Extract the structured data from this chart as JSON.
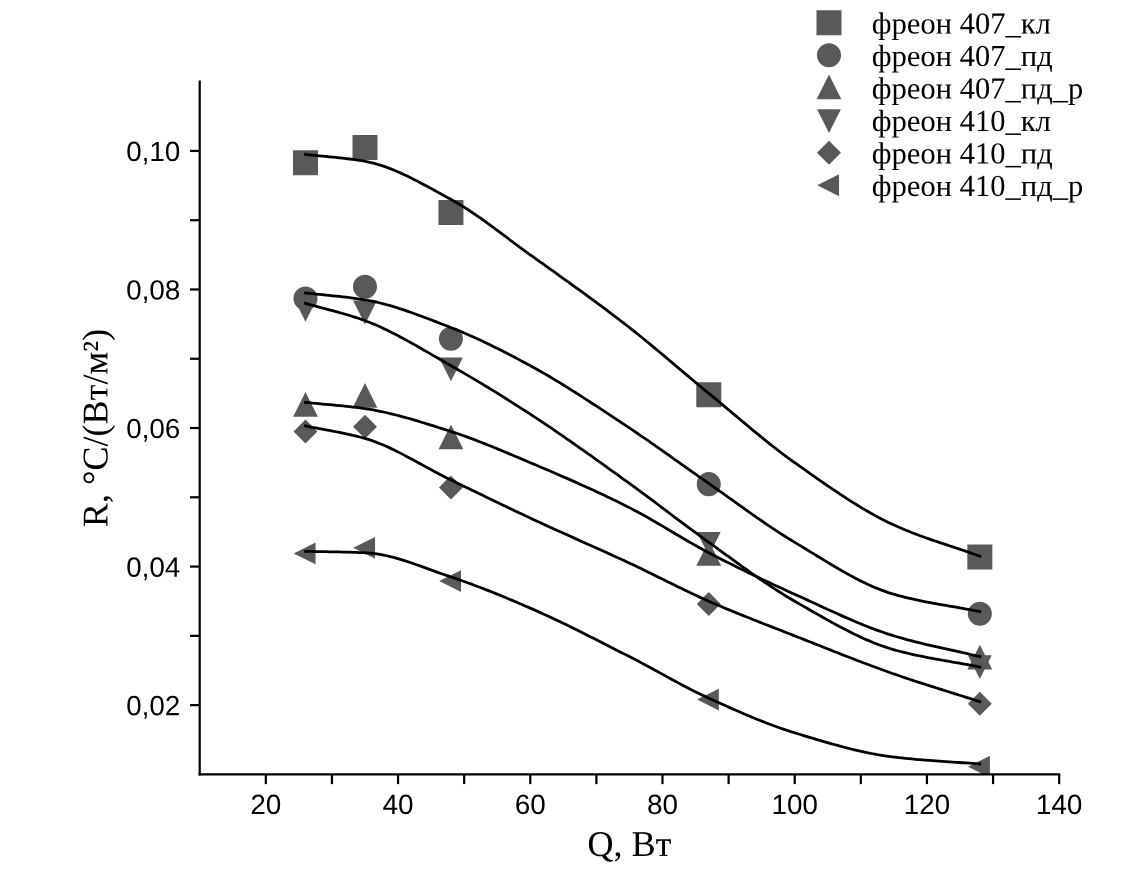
{
  "chart_data": {
    "type": "scatter",
    "xlabel": "Q, Вт",
    "ylabel": "R, °C/(Вт/м²)",
    "xlim": [
      10,
      140
    ],
    "ylim": [
      0.01,
      0.11
    ],
    "xticks": [
      20,
      40,
      60,
      80,
      100,
      120,
      140,
      {
        "value": 30,
        "label": null
      },
      {
        "value": 50,
        "label": null
      },
      {
        "value": 70,
        "label": null
      },
      {
        "value": 90,
        "label": null
      },
      {
        "value": 110,
        "label": null
      },
      {
        "value": 130,
        "label": null
      }
    ],
    "yticks": [
      {
        "value": 0.02,
        "label": "0,02"
      },
      {
        "value": 0.04,
        "label": "0,04"
      },
      {
        "value": 0.06,
        "label": "0,06"
      },
      {
        "value": 0.08,
        "label": "0,08"
      },
      {
        "value": 0.1,
        "label": "0,10"
      },
      {
        "value": 0.03,
        "label": null
      },
      {
        "value": 0.05,
        "label": null
      },
      {
        "value": 0.07,
        "label": null
      },
      {
        "value": 0.09,
        "label": null
      }
    ],
    "grid": false,
    "legend": "top right",
    "x": [
      26,
      35,
      48,
      87,
      128
    ],
    "series": [
      {
        "name": "фреон 407_кл",
        "color": "#595959",
        "marker": "square",
        "values": [
          0.0983,
          0.1005,
          0.0911,
          0.0648,
          0.0414
        ]
      },
      {
        "name": "фреон 407_пд",
        "color": "#595959",
        "marker": "circle",
        "values": [
          0.0787,
          0.0804,
          0.0729,
          0.0519,
          0.0332
        ]
      },
      {
        "name": "фреон 407_пд_р",
        "color": "#595959",
        "marker": "triangle",
        "values": [
          0.0633,
          0.0646,
          0.0586,
          0.0418,
          0.0268
        ]
      },
      {
        "name": "фреон 410_кл",
        "color": "#595959",
        "marker": "triangle_down",
        "values": [
          0.0772,
          0.0768,
          0.0686,
          0.0434,
          0.0256
        ]
      },
      {
        "name": "фреон 410_пд",
        "color": "#595959",
        "marker": "diamond",
        "values": [
          0.0595,
          0.0602,
          0.0514,
          0.0346,
          0.0202
        ]
      },
      {
        "name": "фреон 410_пд_р",
        "color": "#595959",
        "marker": "triangle_left",
        "values": [
          0.0419,
          0.0427,
          0.0379,
          0.0208,
          0.0111
        ]
      },
      {
        "type": "line",
        "color": "#000000",
        "marker": "none",
        "x": [
          26,
          35,
          48,
          60,
          75,
          87,
          100,
          115,
          128
        ],
        "values": [
          0.0995,
          0.0985,
          0.093,
          0.085,
          0.0745,
          0.065,
          0.055,
          0.046,
          0.0415
        ]
      },
      {
        "type": "line",
        "color": "#000000",
        "marker": "none",
        "x": [
          26,
          35,
          48,
          60,
          75,
          87,
          100,
          115,
          128
        ],
        "values": [
          0.0795,
          0.0785,
          0.0745,
          0.069,
          0.06,
          0.052,
          0.0435,
          0.036,
          0.0335
        ]
      },
      {
        "type": "line",
        "color": "#000000",
        "marker": "none",
        "x": [
          26,
          35,
          48,
          60,
          75,
          87,
          100,
          115,
          128
        ],
        "values": [
          0.0637,
          0.0628,
          0.0595,
          0.055,
          0.0485,
          0.042,
          0.036,
          0.03,
          0.027
        ]
      },
      {
        "type": "line",
        "color": "#000000",
        "marker": "none",
        "x": [
          26,
          35,
          48,
          60,
          75,
          87,
          100,
          115,
          128
        ],
        "values": [
          0.078,
          0.0755,
          0.069,
          0.062,
          0.052,
          0.0435,
          0.035,
          0.028,
          0.0255
        ]
      },
      {
        "type": "line",
        "color": "#000000",
        "marker": "none",
        "x": [
          26,
          35,
          48,
          60,
          75,
          87,
          100,
          115,
          128
        ],
        "values": [
          0.0603,
          0.0585,
          0.0525,
          0.047,
          0.0405,
          0.035,
          0.03,
          0.0245,
          0.0205
        ]
      },
      {
        "type": "line",
        "color": "#000000",
        "marker": "none",
        "x": [
          26,
          35,
          48,
          60,
          75,
          87,
          100,
          115,
          128
        ],
        "values": [
          0.0422,
          0.042,
          0.0385,
          0.034,
          0.027,
          0.021,
          0.016,
          0.0125,
          0.0115
        ]
      }
    ]
  }
}
